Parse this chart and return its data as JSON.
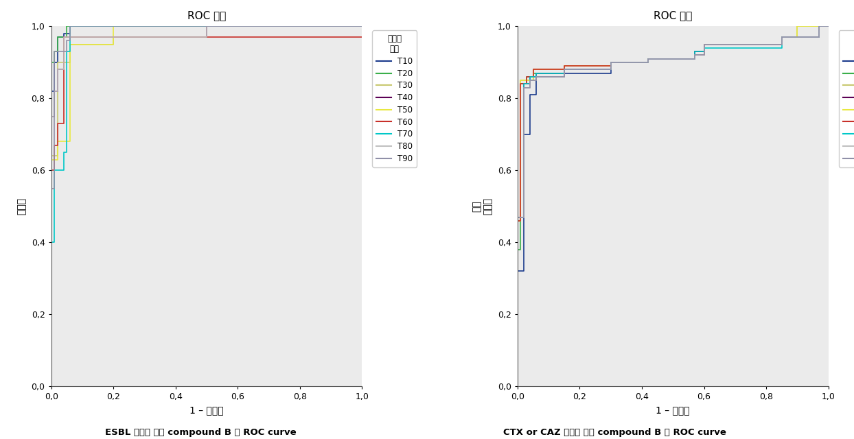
{
  "title": "ROC 공선",
  "xlabel": "1 – 특이도",
  "ylabel1": "민감도",
  "ylabel2": "내성\n민감도",
  "legend_title": "공선의\n소스",
  "caption1": "ESBL 유무에 따른 compound B 의 ROC curve",
  "caption2": "CTX or CAZ 내성에 따른 compound B 의 ROC curve",
  "series": [
    "T10",
    "T20",
    "T30",
    "T40",
    "T50",
    "T60",
    "T70",
    "T80",
    "T90"
  ],
  "colors": [
    "#1a3a8c",
    "#3aaf4a",
    "#c8c870",
    "#5c0055",
    "#e8e840",
    "#c8302a",
    "#00c8c8",
    "#c0c0c0",
    "#9090a8"
  ],
  "bg_color": "#ebebeb",
  "plot_bg": "#f0f0f0",
  "chart1": {
    "curves": [
      {
        "x": [
          0.0,
          0.0,
          0.01,
          0.01,
          0.02,
          0.02,
          0.04,
          0.04,
          0.06,
          0.06,
          0.5,
          0.5,
          1.0
        ],
        "y": [
          0.0,
          0.82,
          0.82,
          0.9,
          0.9,
          0.97,
          0.97,
          0.98,
          0.98,
          1.0,
          1.0,
          1.0,
          1.0
        ]
      },
      {
        "x": [
          0.0,
          0.0,
          0.01,
          0.01,
          0.02,
          0.02,
          0.05,
          0.05,
          1.0
        ],
        "y": [
          0.0,
          0.9,
          0.9,
          0.93,
          0.93,
          0.97,
          0.97,
          1.0,
          1.0
        ]
      },
      {
        "x": [
          0.0,
          0.0,
          0.02,
          0.02,
          0.06,
          0.06,
          0.2,
          0.2,
          0.5,
          0.5,
          1.0
        ],
        "y": [
          0.0,
          0.64,
          0.64,
          0.9,
          0.9,
          0.95,
          0.95,
          0.97,
          0.97,
          1.0,
          1.0
        ]
      },
      {
        "x": [
          0.0,
          0.0,
          0.01,
          0.01,
          0.02,
          0.02,
          0.04,
          0.04,
          0.5,
          0.5,
          1.0
        ],
        "y": [
          0.0,
          0.75,
          0.75,
          0.82,
          0.82,
          0.88,
          0.88,
          0.97,
          0.97,
          1.0,
          1.0
        ]
      },
      {
        "x": [
          0.0,
          0.0,
          0.02,
          0.02,
          0.06,
          0.06,
          0.2,
          0.2,
          1.0
        ],
        "y": [
          0.0,
          0.63,
          0.63,
          0.68,
          0.68,
          0.95,
          0.95,
          1.0,
          1.0
        ]
      },
      {
        "x": [
          0.0,
          0.0,
          0.01,
          0.01,
          0.02,
          0.02,
          0.04,
          0.04,
          1.0
        ],
        "y": [
          0.0,
          0.6,
          0.6,
          0.67,
          0.67,
          0.73,
          0.73,
          0.97,
          0.97
        ]
      },
      {
        "x": [
          0.0,
          0.0,
          0.01,
          0.01,
          0.04,
          0.04,
          0.05,
          0.05,
          0.06,
          0.06,
          1.0
        ],
        "y": [
          0.0,
          0.4,
          0.4,
          0.6,
          0.6,
          0.65,
          0.65,
          0.93,
          0.93,
          1.0,
          1.0
        ]
      },
      {
        "x": [
          0.0,
          0.0,
          0.01,
          0.01,
          0.02,
          0.02,
          0.04,
          0.04,
          0.5,
          0.5,
          1.0
        ],
        "y": [
          0.0,
          0.75,
          0.75,
          0.82,
          0.82,
          0.88,
          0.88,
          0.97,
          0.97,
          1.0,
          1.0
        ]
      },
      {
        "x": [
          0.0,
          0.0,
          0.01,
          0.01,
          0.05,
          0.05,
          0.06,
          0.06,
          1.0
        ],
        "y": [
          0.0,
          0.55,
          0.55,
          0.93,
          0.93,
          0.96,
          0.96,
          1.0,
          1.0
        ]
      }
    ]
  },
  "chart2": {
    "curves": [
      {
        "x": [
          0.0,
          0.0,
          0.02,
          0.02,
          0.04,
          0.04,
          0.06,
          0.06,
          0.15,
          0.15,
          0.3,
          0.3,
          0.42,
          0.42,
          0.57,
          0.57,
          0.6,
          0.6,
          0.85,
          0.85,
          0.97,
          0.97,
          1.0
        ],
        "y": [
          0.0,
          0.32,
          0.32,
          0.7,
          0.7,
          0.81,
          0.81,
          0.86,
          0.86,
          0.87,
          0.87,
          0.9,
          0.9,
          0.91,
          0.91,
          0.93,
          0.93,
          0.95,
          0.95,
          0.97,
          0.97,
          1.0,
          1.0
        ]
      },
      {
        "x": [
          0.0,
          0.0,
          0.01,
          0.01,
          0.03,
          0.03,
          0.05,
          0.05,
          0.15,
          0.15,
          0.3,
          0.3,
          0.42,
          0.42,
          0.57,
          0.57,
          0.6,
          0.6,
          0.85,
          0.85,
          0.97,
          0.97,
          1.0
        ],
        "y": [
          0.0,
          0.38,
          0.38,
          0.84,
          0.84,
          0.86,
          0.86,
          0.87,
          0.87,
          0.88,
          0.88,
          0.9,
          0.9,
          0.91,
          0.91,
          0.93,
          0.93,
          0.95,
          0.95,
          0.97,
          0.97,
          1.0,
          1.0
        ]
      },
      {
        "x": [
          0.0,
          0.0,
          0.01,
          0.01,
          0.05,
          0.05,
          0.15,
          0.15,
          0.3,
          0.3,
          0.42,
          0.42,
          0.57,
          0.57,
          0.6,
          0.6,
          0.85,
          0.85,
          0.9,
          0.9,
          1.0
        ],
        "y": [
          0.0,
          0.46,
          0.46,
          0.85,
          0.85,
          0.88,
          0.88,
          0.89,
          0.89,
          0.9,
          0.9,
          0.91,
          0.91,
          0.92,
          0.92,
          0.95,
          0.95,
          0.97,
          0.97,
          1.0,
          1.0
        ]
      },
      {
        "x": [
          0.0,
          0.0,
          0.02,
          0.02,
          0.04,
          0.04,
          0.06,
          0.06,
          0.15,
          0.15,
          0.3,
          0.3,
          0.42,
          0.42,
          0.57,
          0.57,
          0.6,
          0.6,
          0.85,
          0.85,
          0.97,
          0.97,
          1.0
        ],
        "y": [
          0.0,
          0.47,
          0.47,
          0.84,
          0.84,
          0.86,
          0.86,
          0.87,
          0.87,
          0.88,
          0.88,
          0.9,
          0.9,
          0.91,
          0.91,
          0.93,
          0.93,
          0.95,
          0.95,
          0.97,
          0.97,
          1.0,
          1.0
        ]
      },
      {
        "x": [
          0.0,
          0.0,
          0.01,
          0.01,
          0.05,
          0.05,
          0.15,
          0.15,
          0.3,
          0.3,
          0.42,
          0.42,
          0.57,
          0.57,
          0.6,
          0.6,
          0.85,
          0.85,
          0.9,
          0.9,
          1.0
        ],
        "y": [
          0.0,
          0.46,
          0.46,
          0.85,
          0.85,
          0.88,
          0.88,
          0.89,
          0.89,
          0.9,
          0.9,
          0.91,
          0.91,
          0.92,
          0.92,
          0.95,
          0.95,
          0.97,
          0.97,
          1.0,
          1.0
        ]
      },
      {
        "x": [
          0.0,
          0.0,
          0.01,
          0.01,
          0.03,
          0.03,
          0.05,
          0.05,
          0.15,
          0.15,
          0.3,
          0.3,
          0.42,
          0.42,
          0.57,
          0.57,
          0.6,
          0.6,
          0.85,
          0.85,
          0.97,
          0.97,
          1.0
        ],
        "y": [
          0.0,
          0.46,
          0.46,
          0.84,
          0.84,
          0.86,
          0.86,
          0.88,
          0.88,
          0.89,
          0.89,
          0.9,
          0.9,
          0.91,
          0.91,
          0.92,
          0.92,
          0.95,
          0.95,
          0.97,
          0.97,
          1.0,
          1.0
        ]
      },
      {
        "x": [
          0.0,
          0.0,
          0.02,
          0.02,
          0.04,
          0.04,
          0.06,
          0.06,
          0.15,
          0.15,
          0.3,
          0.3,
          0.42,
          0.42,
          0.57,
          0.57,
          0.6,
          0.6,
          0.85,
          0.85,
          0.97,
          0.97,
          1.0
        ],
        "y": [
          0.0,
          0.47,
          0.47,
          0.84,
          0.84,
          0.86,
          0.86,
          0.87,
          0.87,
          0.88,
          0.88,
          0.9,
          0.9,
          0.91,
          0.91,
          0.93,
          0.93,
          0.94,
          0.94,
          0.97,
          0.97,
          1.0,
          1.0
        ]
      },
      {
        "x": [
          0.0,
          0.0,
          0.02,
          0.02,
          0.04,
          0.04,
          0.06,
          0.06,
          0.15,
          0.15,
          0.3,
          0.3,
          0.42,
          0.42,
          0.57,
          0.57,
          0.6,
          0.6,
          0.85,
          0.85,
          0.97,
          0.97,
          1.0
        ],
        "y": [
          0.0,
          0.47,
          0.47,
          0.83,
          0.83,
          0.85,
          0.85,
          0.86,
          0.86,
          0.88,
          0.88,
          0.9,
          0.9,
          0.91,
          0.91,
          0.92,
          0.92,
          0.95,
          0.95,
          0.97,
          0.97,
          1.0,
          1.0
        ]
      },
      {
        "x": [
          0.0,
          0.0,
          0.02,
          0.02,
          0.04,
          0.04,
          0.06,
          0.06,
          0.15,
          0.15,
          0.3,
          0.3,
          0.42,
          0.42,
          0.57,
          0.57,
          0.6,
          0.6,
          0.85,
          0.85,
          0.97,
          0.97,
          1.0
        ],
        "y": [
          0.0,
          0.47,
          0.47,
          0.83,
          0.83,
          0.85,
          0.85,
          0.86,
          0.86,
          0.88,
          0.88,
          0.9,
          0.9,
          0.91,
          0.91,
          0.92,
          0.92,
          0.95,
          0.95,
          0.97,
          0.97,
          1.0,
          1.0
        ]
      }
    ]
  }
}
